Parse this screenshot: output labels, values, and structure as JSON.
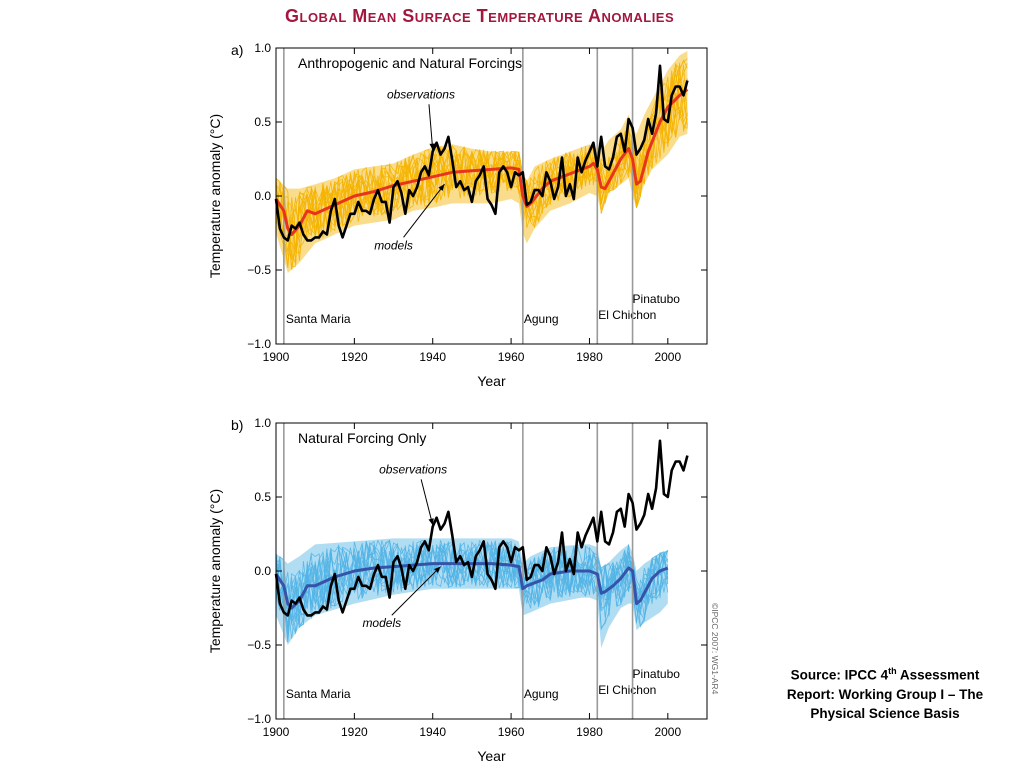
{
  "page": {
    "title": "Global Mean Surface Temperature Anomalies"
  },
  "colors": {
    "title": "#a3173f",
    "observations": "#000000",
    "panel_a_model_mean": "#e8341c",
    "panel_a_model_runs": "#f5b400",
    "panel_b_model_mean": "#3553a8",
    "panel_b_model_runs": "#52b4e5",
    "eruption_lines": "#9a9a9a"
  },
  "source": {
    "before_sup": "Source: IPCC 4",
    "sup": "th",
    "after_sup": " Assessment Report: Working Group I – The Physical Science Basis"
  },
  "copyright": "©IPCC 2007: WG1-AR4",
  "chart_data": [
    {
      "panel": "a)",
      "type": "line",
      "title": "Anthropogenic and Natural Forcings",
      "xlabel": "Year",
      "ylabel": "Temperature anomaly (°C)",
      "xlim": [
        1900,
        2010
      ],
      "ylim": [
        -1.0,
        1.0
      ],
      "xticks": [
        1900,
        1920,
        1940,
        1960,
        1980,
        2000
      ],
      "yticks": [
        -1.0,
        -0.5,
        0.0,
        0.5,
        1.0
      ],
      "ytick_labels": [
        "−1.0",
        "−0.5",
        "0.0",
        "0.5",
        "1.0"
      ],
      "grid": false,
      "annotations": [
        {
          "text": "observations",
          "x": 1937,
          "y": 0.66,
          "points_to_x": 1940,
          "points_to_y": 0.31
        },
        {
          "text": "models",
          "x": 1930,
          "y": -0.36,
          "points_to_x": 1943,
          "points_to_y": 0.08
        }
      ],
      "events": [
        {
          "label": "Santa Maria",
          "year": 1902
        },
        {
          "label": "Agung",
          "year": 1963
        },
        {
          "label": "El Chichon",
          "year": 1982
        },
        {
          "label": "Pinatubo",
          "year": 1991
        }
      ],
      "ensemble_band": {
        "x": [
          1900,
          1903,
          1906,
          1910,
          1915,
          1920,
          1925,
          1930,
          1935,
          1940,
          1945,
          1950,
          1955,
          1960,
          1962,
          1963,
          1964,
          1966,
          1970,
          1975,
          1980,
          1982,
          1983,
          1985,
          1988,
          1990,
          1991,
          1992,
          1994,
          1996,
          2000,
          2003,
          2005
        ],
        "low": [
          -0.25,
          -0.52,
          -0.45,
          -0.32,
          -0.26,
          -0.2,
          -0.18,
          -0.16,
          -0.1,
          -0.08,
          -0.05,
          -0.05,
          -0.05,
          -0.02,
          -0.05,
          -0.25,
          -0.32,
          -0.22,
          -0.1,
          -0.05,
          0.02,
          0.0,
          -0.12,
          0.02,
          0.08,
          0.12,
          0.0,
          -0.08,
          0.08,
          0.18,
          0.28,
          0.4,
          0.42
        ],
        "high": [
          0.12,
          0.05,
          0.05,
          0.08,
          0.12,
          0.18,
          0.2,
          0.22,
          0.28,
          0.33,
          0.35,
          0.32,
          0.3,
          0.3,
          0.3,
          0.15,
          0.1,
          0.2,
          0.25,
          0.3,
          0.35,
          0.32,
          0.3,
          0.38,
          0.45,
          0.55,
          0.45,
          0.42,
          0.55,
          0.65,
          0.85,
          0.95,
          0.98
        ]
      },
      "series": [
        {
          "name": "observations",
          "x": [
            1900,
            1901,
            1902,
            1903,
            1904,
            1905,
            1906,
            1907,
            1908,
            1909,
            1910,
            1911,
            1912,
            1913,
            1914,
            1915,
            1916,
            1917,
            1918,
            1919,
            1920,
            1921,
            1922,
            1923,
            1924,
            1925,
            1926,
            1927,
            1928,
            1929,
            1930,
            1931,
            1932,
            1933,
            1934,
            1935,
            1936,
            1937,
            1938,
            1939,
            1940,
            1941,
            1942,
            1943,
            1944,
            1945,
            1946,
            1947,
            1948,
            1949,
            1950,
            1951,
            1952,
            1953,
            1954,
            1955,
            1956,
            1957,
            1958,
            1959,
            1960,
            1961,
            1962,
            1963,
            1964,
            1965,
            1966,
            1967,
            1968,
            1969,
            1970,
            1971,
            1972,
            1973,
            1974,
            1975,
            1976,
            1977,
            1978,
            1979,
            1980,
            1981,
            1982,
            1983,
            1984,
            1985,
            1986,
            1987,
            1988,
            1989,
            1990,
            1991,
            1992,
            1993,
            1994,
            1995,
            1996,
            1997,
            1998,
            1999,
            2000,
            2001,
            2002,
            2003,
            2004,
            2005
          ],
          "y": [
            -0.02,
            -0.22,
            -0.28,
            -0.3,
            -0.2,
            -0.22,
            -0.18,
            -0.26,
            -0.3,
            -0.3,
            -0.28,
            -0.28,
            -0.24,
            -0.26,
            -0.1,
            -0.02,
            -0.2,
            -0.28,
            -0.2,
            -0.12,
            -0.12,
            -0.04,
            -0.1,
            -0.1,
            -0.12,
            -0.02,
            0.04,
            -0.04,
            -0.04,
            -0.18,
            0.06,
            0.1,
            0.02,
            -0.12,
            0.04,
            0.0,
            0.06,
            0.16,
            0.2,
            0.14,
            0.3,
            0.36,
            0.28,
            0.32,
            0.4,
            0.24,
            0.06,
            0.1,
            0.04,
            0.06,
            -0.04,
            0.1,
            0.14,
            0.2,
            -0.02,
            -0.06,
            -0.12,
            0.16,
            0.2,
            0.16,
            0.06,
            0.16,
            0.14,
            0.16,
            -0.06,
            -0.04,
            0.04,
            0.04,
            0.0,
            0.16,
            0.1,
            -0.02,
            0.06,
            0.26,
            0.0,
            0.08,
            -0.02,
            0.26,
            0.16,
            0.24,
            0.3,
            0.36,
            0.2,
            0.4,
            0.2,
            0.18,
            0.26,
            0.4,
            0.42,
            0.3,
            0.52,
            0.46,
            0.28,
            0.32,
            0.38,
            0.52,
            0.42,
            0.56,
            0.88,
            0.52,
            0.5,
            0.68,
            0.74,
            0.74,
            0.68,
            0.78
          ]
        },
        {
          "name": "models",
          "x": [
            1900,
            1902,
            1903,
            1904,
            1906,
            1908,
            1910,
            1915,
            1920,
            1925,
            1930,
            1935,
            1940,
            1945,
            1950,
            1955,
            1960,
            1962,
            1963,
            1964,
            1965,
            1968,
            1970,
            1975,
            1980,
            1981,
            1982,
            1983,
            1984,
            1986,
            1988,
            1990,
            1991,
            1992,
            1993,
            1995,
            1998,
            2000,
            2003,
            2005
          ],
          "y": [
            -0.02,
            -0.1,
            -0.22,
            -0.26,
            -0.2,
            -0.1,
            -0.12,
            -0.06,
            0.0,
            0.03,
            0.07,
            0.1,
            0.13,
            0.16,
            0.17,
            0.18,
            0.19,
            0.18,
            0.0,
            -0.07,
            -0.05,
            0.05,
            0.1,
            0.15,
            0.2,
            0.22,
            0.18,
            0.06,
            0.05,
            0.15,
            0.25,
            0.32,
            0.25,
            0.08,
            0.1,
            0.3,
            0.5,
            0.6,
            0.68,
            0.72
          ]
        }
      ]
    },
    {
      "panel": "b)",
      "type": "line",
      "title": "Natural Forcing Only",
      "xlabel": "Year",
      "ylabel": "Temperature anomaly (°C)",
      "xlim": [
        1900,
        2010
      ],
      "ylim": [
        -1.0,
        1.0
      ],
      "xticks": [
        1900,
        1920,
        1940,
        1960,
        1980,
        2000
      ],
      "yticks": [
        -1.0,
        -0.5,
        0.0,
        0.5,
        1.0
      ],
      "ytick_labels": [
        "−1.0",
        "−0.5",
        "0.0",
        "0.5",
        "1.0"
      ],
      "grid": false,
      "annotations": [
        {
          "text": "observations",
          "x": 1935,
          "y": 0.66,
          "points_to_x": 1940,
          "points_to_y": 0.31
        },
        {
          "text": "models",
          "x": 1927,
          "y": -0.38,
          "points_to_x": 1942,
          "points_to_y": 0.03
        }
      ],
      "events": [
        {
          "label": "Santa Maria",
          "year": 1902
        },
        {
          "label": "Agung",
          "year": 1963
        },
        {
          "label": "El Chichon",
          "year": 1982
        },
        {
          "label": "Pinatubo",
          "year": 1991
        }
      ],
      "ensemble_band": {
        "x": [
          1900,
          1903,
          1906,
          1910,
          1920,
          1930,
          1940,
          1950,
          1960,
          1962,
          1963,
          1965,
          1970,
          1978,
          1980,
          1982,
          1983,
          1985,
          1988,
          1990,
          1991,
          1992,
          1994,
          1998,
          2000
        ],
        "low": [
          -0.3,
          -0.5,
          -0.38,
          -0.3,
          -0.22,
          -0.16,
          -0.12,
          -0.12,
          -0.12,
          -0.12,
          -0.3,
          -0.28,
          -0.22,
          -0.18,
          -0.18,
          -0.2,
          -0.52,
          -0.38,
          -0.25,
          -0.22,
          -0.22,
          -0.4,
          -0.35,
          -0.28,
          -0.22
        ],
        "high": [
          0.12,
          0.05,
          0.1,
          0.18,
          0.2,
          0.22,
          0.22,
          0.22,
          0.22,
          0.2,
          0.05,
          0.1,
          0.16,
          0.18,
          0.18,
          0.16,
          0.02,
          0.06,
          0.14,
          0.18,
          0.12,
          0.0,
          0.05,
          0.12,
          0.14
        ]
      },
      "series": [
        {
          "name": "observations",
          "x": [
            1900,
            1901,
            1902,
            1903,
            1904,
            1905,
            1906,
            1907,
            1908,
            1909,
            1910,
            1911,
            1912,
            1913,
            1914,
            1915,
            1916,
            1917,
            1918,
            1919,
            1920,
            1921,
            1922,
            1923,
            1924,
            1925,
            1926,
            1927,
            1928,
            1929,
            1930,
            1931,
            1932,
            1933,
            1934,
            1935,
            1936,
            1937,
            1938,
            1939,
            1940,
            1941,
            1942,
            1943,
            1944,
            1945,
            1946,
            1947,
            1948,
            1949,
            1950,
            1951,
            1952,
            1953,
            1954,
            1955,
            1956,
            1957,
            1958,
            1959,
            1960,
            1961,
            1962,
            1963,
            1964,
            1965,
            1966,
            1967,
            1968,
            1969,
            1970,
            1971,
            1972,
            1973,
            1974,
            1975,
            1976,
            1977,
            1978,
            1979,
            1980,
            1981,
            1982,
            1983,
            1984,
            1985,
            1986,
            1987,
            1988,
            1989,
            1990,
            1991,
            1992,
            1993,
            1994,
            1995,
            1996,
            1997,
            1998,
            1999,
            2000,
            2001,
            2002,
            2003,
            2004,
            2005
          ],
          "y": [
            -0.02,
            -0.22,
            -0.28,
            -0.3,
            -0.2,
            -0.22,
            -0.18,
            -0.26,
            -0.3,
            -0.3,
            -0.28,
            -0.28,
            -0.24,
            -0.26,
            -0.1,
            -0.02,
            -0.2,
            -0.28,
            -0.2,
            -0.12,
            -0.12,
            -0.04,
            -0.1,
            -0.1,
            -0.12,
            -0.02,
            0.04,
            -0.04,
            -0.04,
            -0.18,
            0.06,
            0.1,
            0.02,
            -0.12,
            0.04,
            0.0,
            0.06,
            0.16,
            0.2,
            0.14,
            0.3,
            0.36,
            0.28,
            0.32,
            0.4,
            0.24,
            0.06,
            0.1,
            0.04,
            0.06,
            -0.04,
            0.1,
            0.14,
            0.2,
            -0.02,
            -0.06,
            -0.12,
            0.16,
            0.2,
            0.16,
            0.06,
            0.16,
            0.14,
            0.16,
            -0.06,
            -0.04,
            0.04,
            0.04,
            0.0,
            0.16,
            0.1,
            -0.02,
            0.06,
            0.26,
            0.0,
            0.08,
            -0.02,
            0.26,
            0.16,
            0.24,
            0.3,
            0.36,
            0.2,
            0.4,
            0.2,
            0.18,
            0.26,
            0.4,
            0.42,
            0.3,
            0.52,
            0.46,
            0.28,
            0.32,
            0.38,
            0.52,
            0.42,
            0.56,
            0.88,
            0.52,
            0.5,
            0.68,
            0.74,
            0.74,
            0.68,
            0.78
          ]
        },
        {
          "name": "models",
          "x": [
            1900,
            1902,
            1903,
            1904,
            1906,
            1908,
            1910,
            1915,
            1920,
            1925,
            1930,
            1935,
            1940,
            1945,
            1950,
            1955,
            1960,
            1962,
            1963,
            1964,
            1966,
            1968,
            1970,
            1975,
            1978,
            1980,
            1982,
            1983,
            1984,
            1986,
            1988,
            1990,
            1991,
            1992,
            1993,
            1994,
            1996,
            1998,
            2000
          ],
          "y": [
            -0.02,
            -0.1,
            -0.22,
            -0.25,
            -0.2,
            -0.1,
            -0.1,
            -0.04,
            0.0,
            0.02,
            0.03,
            0.04,
            0.05,
            0.05,
            0.05,
            0.05,
            0.04,
            0.03,
            -0.12,
            -0.1,
            -0.08,
            -0.06,
            -0.02,
            0.0,
            0.0,
            0.0,
            -0.02,
            -0.15,
            -0.14,
            -0.1,
            -0.05,
            0.02,
            0.0,
            -0.22,
            -0.2,
            -0.15,
            -0.05,
            0.0,
            0.02
          ]
        }
      ]
    }
  ]
}
